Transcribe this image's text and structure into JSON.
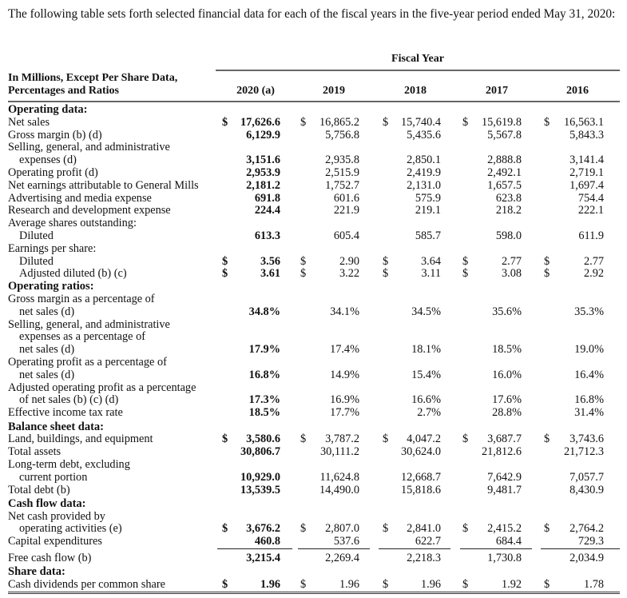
{
  "intro": "The following table sets forth selected financial data for each of the fiscal years in the five-year period ended May 31, 2020:",
  "header": {
    "group": "Fiscal Year",
    "label_lines": [
      "In Millions, Except Per Share Data,",
      "Percentages and Ratios"
    ],
    "years": [
      "2020 (a)",
      "2019",
      "2018",
      "2017",
      "2016"
    ]
  },
  "rows": [
    {
      "label": "Operating data:",
      "type": "head"
    },
    {
      "label": "Net sales",
      "dollar": true,
      "values": [
        "17,626.6",
        "16,865.2",
        "15,740.4",
        "15,619.8",
        "16,563.1"
      ]
    },
    {
      "label": "Gross margin (b) (d)",
      "values": [
        "6,129.9",
        "5,756.8",
        "5,435.6",
        "5,567.8",
        "5,843.3"
      ]
    },
    {
      "label": "Selling, general, and administrative"
    },
    {
      "label": "expenses (d)",
      "indent": true,
      "values": [
        "3,151.6",
        "2,935.8",
        "2,850.1",
        "2,888.8",
        "3,141.4"
      ]
    },
    {
      "label": "Operating profit (d)",
      "values": [
        "2,953.9",
        "2,515.9",
        "2,419.9",
        "2,492.1",
        "2,719.1"
      ]
    },
    {
      "label": "Net earnings attributable to General Mills",
      "values": [
        "2,181.2",
        "1,752.7",
        "2,131.0",
        "1,657.5",
        "1,697.4"
      ]
    },
    {
      "label": "Advertising and media expense",
      "values": [
        "691.8",
        "601.6",
        "575.9",
        "623.8",
        "754.4"
      ]
    },
    {
      "label": "Research and development expense",
      "values": [
        "224.4",
        "221.9",
        "219.1",
        "218.2",
        "222.1"
      ]
    },
    {
      "label": "Average shares outstanding:"
    },
    {
      "label": "Diluted",
      "indent": true,
      "values": [
        "613.3",
        "605.4",
        "585.7",
        "598.0",
        "611.9"
      ]
    },
    {
      "label": "Earnings per share:"
    },
    {
      "label": "Diluted",
      "indent": true,
      "dollar": true,
      "values": [
        "3.56",
        "2.90",
        "3.64",
        "2.77",
        "2.77"
      ]
    },
    {
      "label": "Adjusted diluted (b) (c)",
      "indent": true,
      "dollar": true,
      "values": [
        "3.61",
        "3.22",
        "3.11",
        "3.08",
        "2.92"
      ]
    },
    {
      "label": "Operating ratios:",
      "type": "head"
    },
    {
      "label": "Gross margin as a percentage of"
    },
    {
      "label": "net sales (d)",
      "indent": true,
      "values": [
        "34.8%",
        "34.1%",
        "34.5%",
        "35.6%",
        "35.3%"
      ]
    },
    {
      "label": "Selling, general, and administrative"
    },
    {
      "label": "expenses as a percentage of",
      "indent": true
    },
    {
      "label": "net sales (d)",
      "indent": true,
      "values": [
        "17.9%",
        "17.4%",
        "18.1%",
        "18.5%",
        "19.0%"
      ]
    },
    {
      "label": "Operating profit as a percentage of"
    },
    {
      "label": "net sales (d)",
      "indent": true,
      "values": [
        "16.8%",
        "14.9%",
        "15.4%",
        "16.0%",
        "16.4%"
      ]
    },
    {
      "label": "Adjusted operating profit as a percentage"
    },
    {
      "label": "of net sales (b) (c) (d)",
      "indent": true,
      "values": [
        "17.3%",
        "16.9%",
        "16.6%",
        "17.6%",
        "16.8%"
      ]
    },
    {
      "label": "Effective income tax rate",
      "values": [
        "18.5%",
        "17.7%",
        "2.7%",
        "28.8%",
        "31.4%"
      ]
    },
    {
      "label": "Balance sheet data:",
      "type": "head"
    },
    {
      "label": "Land, buildings, and equipment",
      "dollar": true,
      "values": [
        "3,580.6",
        "3,787.2",
        "4,047.2",
        "3,687.7",
        "3,743.6"
      ]
    },
    {
      "label": "Total assets",
      "values": [
        "30,806.7",
        "30,111.2",
        "30,624.0",
        "21,812.6",
        "21,712.3"
      ]
    },
    {
      "label": "Long-term debt, excluding"
    },
    {
      "label": "current portion",
      "indent": true,
      "values": [
        "10,929.0",
        "11,624.8",
        "12,668.7",
        "7,642.9",
        "7,057.7"
      ]
    },
    {
      "label": "Total debt (b)",
      "values": [
        "13,539.5",
        "14,490.0",
        "15,818.6",
        "9,481.7",
        "8,430.9"
      ]
    },
    {
      "label": "Cash flow data:",
      "type": "head"
    },
    {
      "label": "Net cash provided by"
    },
    {
      "label": "operating activities (e)",
      "indent": true,
      "dollar": true,
      "values": [
        "3,676.2",
        "2,807.0",
        "2,841.0",
        "2,415.2",
        "2,764.2"
      ]
    },
    {
      "label": "Capital expenditures",
      "values": [
        "460.8",
        "537.6",
        "622.7",
        "684.4",
        "729.3"
      ],
      "rule_after": true
    },
    {
      "label": "Free cash flow (b)",
      "values": [
        "3,215.4",
        "2,269.4",
        "2,218.3",
        "1,730.8",
        "2,034.9"
      ]
    },
    {
      "label": "Share data:",
      "type": "head"
    },
    {
      "label": "Cash dividends per common share",
      "dollar": true,
      "values": [
        "1.96",
        "1.96",
        "1.96",
        "1.92",
        "1.78"
      ],
      "double_after": true
    }
  ],
  "currency_symbol": "$"
}
